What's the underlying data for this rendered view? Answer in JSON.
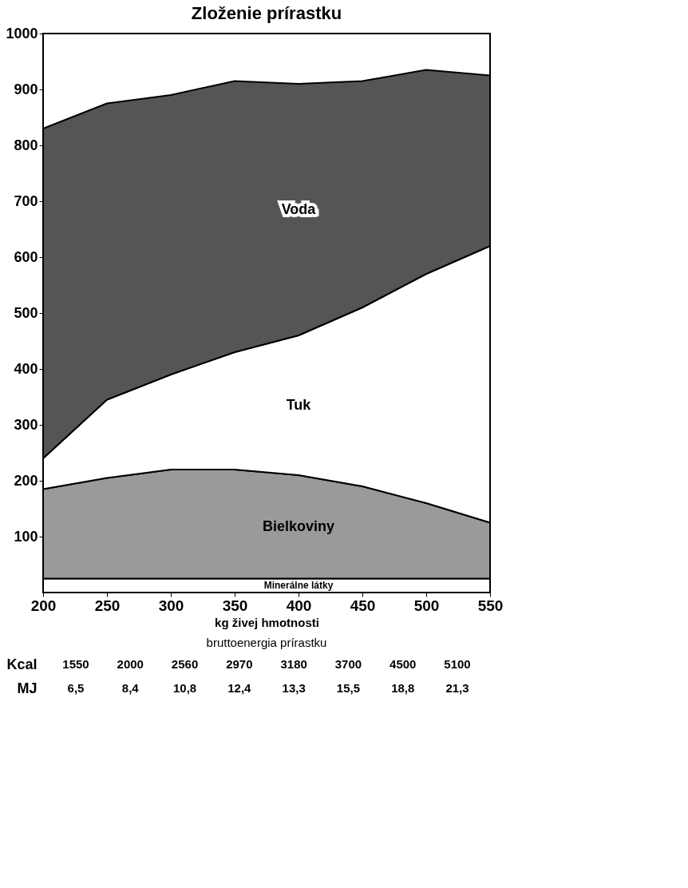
{
  "chart_data": {
    "type": "area",
    "title": "Zloženie prírastku",
    "xlabel": "kg živej hmotnosti",
    "stacked": true,
    "categories": [
      "200",
      "250",
      "300",
      "350",
      "400",
      "450",
      "500",
      "550"
    ],
    "series": [
      {
        "name": "Minerálne látky",
        "color": "#ffffff",
        "values": [
          25,
          25,
          25,
          25,
          25,
          25,
          25,
          25
        ]
      },
      {
        "name": "Bielkoviny",
        "color": "#9a9a9a",
        "values": [
          160,
          180,
          195,
          195,
          185,
          165,
          135,
          100
        ]
      },
      {
        "name": "Tuk",
        "color": "#ffffff",
        "values": [
          55,
          140,
          170,
          210,
          250,
          320,
          410,
          495
        ]
      },
      {
        "name": "Voda",
        "color": "#555555",
        "values": [
          590,
          530,
          500,
          485,
          450,
          405,
          365,
          305
        ]
      }
    ],
    "ylim": [
      0,
      1000
    ],
    "yticks": [
      100,
      200,
      300,
      400,
      500,
      600,
      700,
      800,
      900,
      {
        "value": 1000,
        "label": "1000"
      }
    ],
    "grid": false,
    "legend": false,
    "annotations": [
      "bruttoenergia prírastku",
      "Kcal",
      "1550",
      "2000",
      "2560",
      "2970",
      "3180",
      "3700",
      "4500",
      "5100",
      "MJ",
      "6,5",
      "8,4",
      "10,8",
      "12,4",
      "13,3",
      "15,5",
      "18,8",
      "21,3"
    ]
  }
}
